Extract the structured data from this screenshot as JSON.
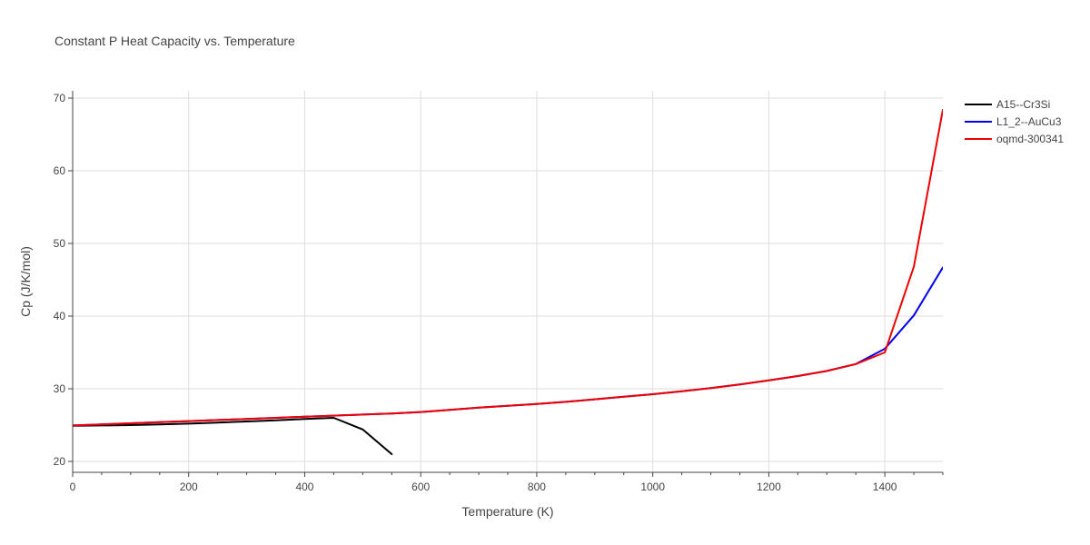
{
  "chart_data": {
    "type": "line",
    "title": "Constant P Heat Capacity vs. Temperature",
    "xlabel": "Temperature (K)",
    "ylabel": "Cp (J/K/mol)",
    "xlim": [
      0,
      1500
    ],
    "ylim": [
      18.5,
      71
    ],
    "xticks": [
      0,
      200,
      400,
      600,
      800,
      1000,
      1200,
      1400
    ],
    "yticks": [
      20,
      30,
      40,
      50,
      60,
      70
    ],
    "grid": true,
    "legend_position": "top-right",
    "series": [
      {
        "name": "A15--Cr3Si",
        "color": "#000000",
        "x": [
          0,
          50,
          100,
          150,
          200,
          250,
          300,
          350,
          400,
          450,
          500,
          550
        ],
        "y": [
          24.9,
          24.95,
          25.0,
          25.1,
          25.2,
          25.35,
          25.5,
          25.65,
          25.85,
          26.0,
          24.4,
          21.0
        ]
      },
      {
        "name": "L1_2--AuCu3",
        "color": "#0000ee",
        "x": [
          0,
          50,
          100,
          150,
          200,
          250,
          300,
          350,
          400,
          450,
          500,
          550,
          600,
          650,
          700,
          750,
          800,
          850,
          900,
          950,
          1000,
          1050,
          1100,
          1150,
          1200,
          1250,
          1300,
          1350,
          1400,
          1450,
          1500
        ],
        "y": [
          24.95,
          25.1,
          25.25,
          25.4,
          25.55,
          25.7,
          25.85,
          26.0,
          26.15,
          26.3,
          26.45,
          26.6,
          26.8,
          27.1,
          27.4,
          27.65,
          27.9,
          28.2,
          28.55,
          28.9,
          29.25,
          29.65,
          30.1,
          30.6,
          31.15,
          31.75,
          32.45,
          33.4,
          35.5,
          40.1,
          46.7
        ]
      },
      {
        "name": "oqmd-300341",
        "color": "#ee0000",
        "x": [
          0,
          50,
          100,
          150,
          200,
          250,
          300,
          350,
          400,
          450,
          500,
          550,
          600,
          650,
          700,
          750,
          800,
          850,
          900,
          950,
          1000,
          1050,
          1100,
          1150,
          1200,
          1250,
          1300,
          1350,
          1400,
          1450,
          1500
        ],
        "y": [
          24.95,
          25.1,
          25.25,
          25.4,
          25.55,
          25.7,
          25.85,
          26.0,
          26.15,
          26.3,
          26.45,
          26.6,
          26.8,
          27.1,
          27.4,
          27.65,
          27.9,
          28.2,
          28.55,
          28.9,
          29.25,
          29.65,
          30.1,
          30.6,
          31.15,
          31.75,
          32.45,
          33.4,
          35.0,
          46.8,
          68.4
        ]
      }
    ]
  }
}
